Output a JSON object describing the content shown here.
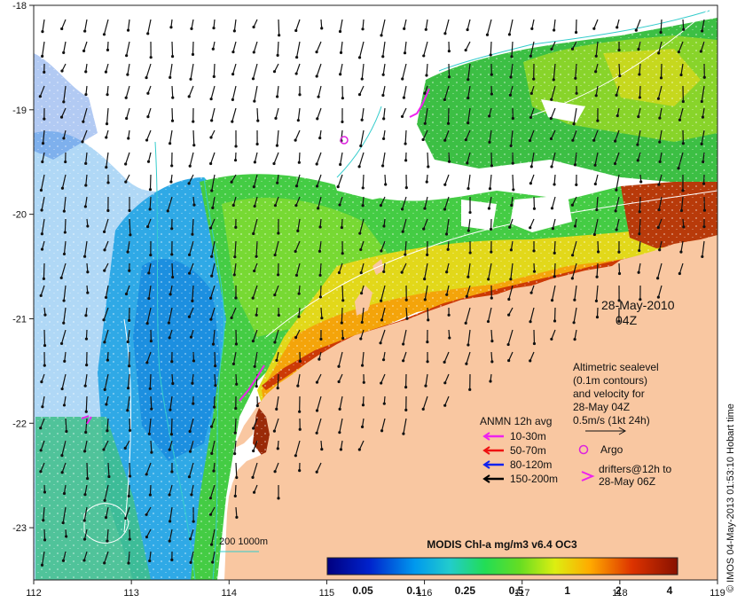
{
  "map": {
    "date_label": "28-May-2010",
    "time_label": "04Z",
    "x_ticks": [
      "112",
      "113",
      "114",
      "115",
      "116",
      "117",
      "118",
      "119"
    ],
    "y_ticks": [
      "-18",
      "-19",
      "-20",
      "-21",
      "-22",
      "-23"
    ],
    "x_range": [
      112,
      119
    ],
    "y_range": [
      -18,
      -23.5
    ],
    "land_color": "#f9c7a1",
    "cloud_color": "#ffffff"
  },
  "altimetry_note": {
    "line1": "Altimetric sealevel",
    "line2": "(0.1m contours)",
    "line3": "and velocity for",
    "line4": "28-May 04Z",
    "line5": "0.5m/s (1kt 24h)"
  },
  "legend": {
    "title": "ANMN 12h avg",
    "items": [
      {
        "label": "10-30m",
        "color": "#ee22ee"
      },
      {
        "label": "50-70m",
        "color": "#ee1111"
      },
      {
        "label": "80-120m",
        "color": "#1122ee"
      },
      {
        "label": "150-200m",
        "color": "#000000"
      }
    ],
    "argo_label": "Argo",
    "argo_color": "#dd22dd",
    "drifters_line1": "drifters@12h to",
    "drifters_line2": "28-May 06Z",
    "drifter_color": "#ee22ee",
    "isobath_label": "200  1000m",
    "isobath_color": "#33cccc"
  },
  "colorbar": {
    "title": "MODIS Chl-a mg/m3 v6.4 OC3",
    "tick_labels": [
      "0.05",
      "0.1",
      "0.25",
      "0.5",
      "1",
      "2",
      "4"
    ]
  },
  "credit": "© IMOS 04-May-2013 01:53:10 Hobart time"
}
